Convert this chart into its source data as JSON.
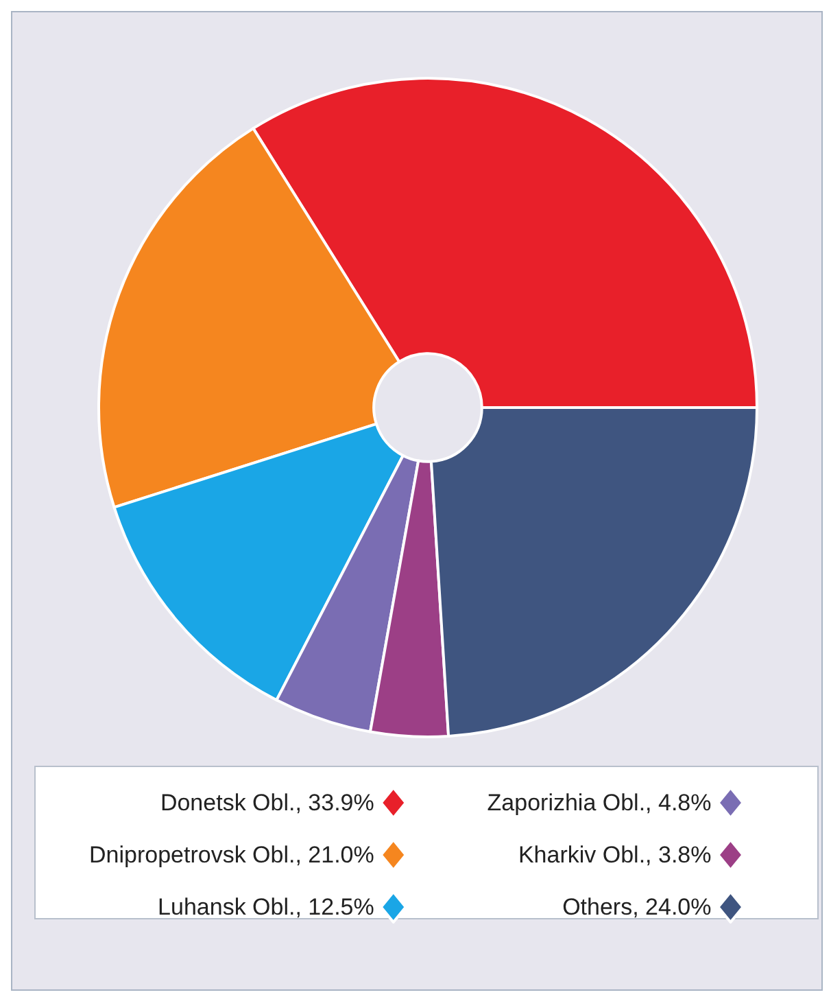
{
  "chart_data": {
    "type": "donut",
    "legend": "bottom",
    "categories": [
      "Donetsk Obl., 33.9%",
      "Dnipropetrovsk Obl., 21.0%",
      "Luhansk Obl., 12.5%",
      "Zaporizhia Obl., 4.8%",
      "Kharkiv Obl., 3.8%",
      "Others, 24.0%"
    ],
    "values": [
      33.9,
      21.0,
      12.5,
      4.8,
      3.8,
      24.0
    ],
    "colors": [
      "#e8202a",
      "#f5861f",
      "#1aa6e6",
      "#7a6db3",
      "#9c3f86",
      "#3f5580"
    ]
  }
}
